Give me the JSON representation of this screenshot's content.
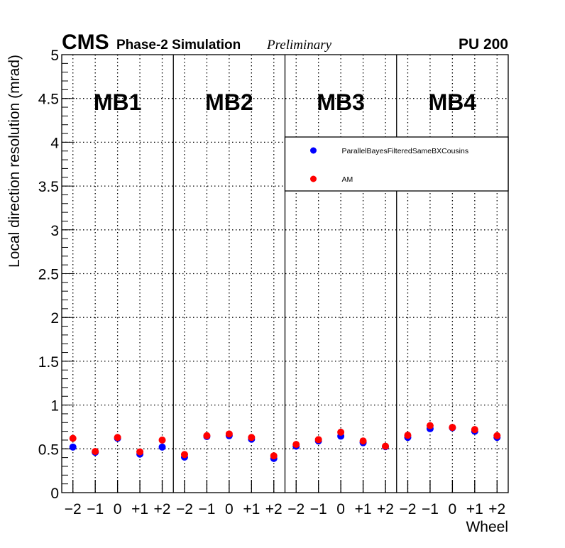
{
  "header": {
    "experiment": "CMS",
    "subtitle": "Phase-2 Simulation",
    "status": "Preliminary",
    "pileup": "PU 200"
  },
  "chart_data": {
    "type": "scatter",
    "title": "",
    "xlabel": "Wheel",
    "ylabel": "Local direction resolution (mrad)",
    "ylim": [
      0,
      5
    ],
    "yticks": [
      "0",
      "0.5",
      "1",
      "1.5",
      "2",
      "2.5",
      "3",
      "3.5",
      "4",
      "4.5",
      "5"
    ],
    "grid": true,
    "legend_position": "upper-right",
    "stations": [
      "MB1",
      "MB2",
      "MB3",
      "MB4"
    ],
    "wheels": [
      "−2",
      "−1",
      "0",
      "+1",
      "+2"
    ],
    "series": [
      {
        "name": "ParallelBayesFilteredSameBXCousins",
        "color": "#0000ff",
        "values": [
          0.52,
          0.46,
          0.62,
          0.44,
          0.52,
          0.405,
          0.64,
          0.65,
          0.61,
          0.39,
          0.53,
          0.59,
          0.645,
          0.57,
          0.525,
          0.63,
          0.73,
          0.74,
          0.7,
          0.63
        ]
      },
      {
        "name": "AM",
        "color": "#ff0000",
        "values": [
          0.62,
          0.47,
          0.63,
          0.465,
          0.6,
          0.435,
          0.65,
          0.67,
          0.63,
          0.42,
          0.55,
          0.605,
          0.69,
          0.59,
          0.53,
          0.655,
          0.765,
          0.745,
          0.72,
          0.65
        ]
      }
    ]
  }
}
